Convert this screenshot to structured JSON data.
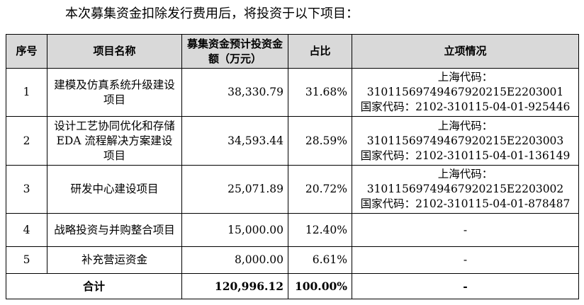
{
  "intro": "本次募集资金扣除发行费用后，将投资于以下项目：",
  "headers": {
    "no": "序号",
    "name": "项目名称",
    "amount": "募集资金预计投资金额（万元）",
    "ratio": "占比",
    "approval": "立项情况"
  },
  "rows": [
    {
      "no": "1",
      "name": "建模及仿真系统升级建设项目",
      "amount": "38,330.79",
      "ratio": "31.68%",
      "approval": [
        "上海代码：",
        "31011569749467920215E2203001",
        "国家代码：2102-310115-04-01-925446"
      ]
    },
    {
      "no": "2",
      "name": "设计工艺协同优化和存储 EDA 流程解决方案建设项目",
      "amount": "34,593.44",
      "ratio": "28.59%",
      "approval": [
        "上海代码：",
        "31011569749467920215E2203003",
        "国家代码：2102-310115-04-01-136149"
      ]
    },
    {
      "no": "3",
      "name": "研发中心建设项目",
      "amount": "25,071.89",
      "ratio": "20.72%",
      "approval": [
        "上海代码：",
        "31011569749467920215E2203002",
        "国家代码：2102-310115-04-01-878487"
      ]
    },
    {
      "no": "4",
      "name": "战略投资与并购整合项目",
      "amount": "15,000.00",
      "ratio": "12.40%",
      "approval": [
        "-"
      ]
    },
    {
      "no": "5",
      "name": "补充营运资金",
      "amount": "8,000.00",
      "ratio": "6.61%",
      "approval": [
        "-"
      ]
    }
  ],
  "total": {
    "label": "合计",
    "amount": "120,996.12",
    "ratio": "100.00%",
    "approval": "-"
  }
}
